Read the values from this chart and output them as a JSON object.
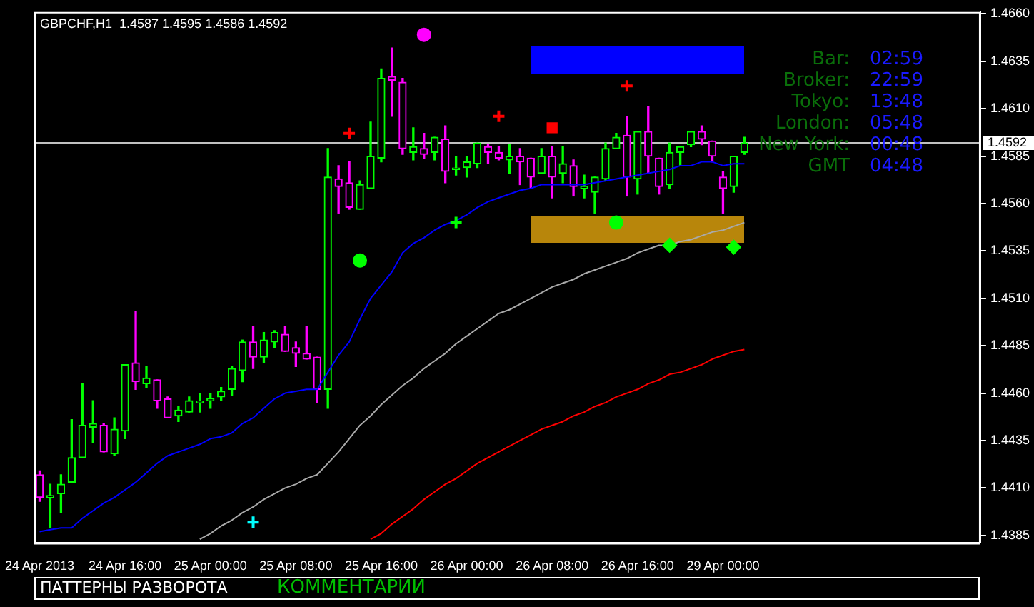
{
  "chart_data": {
    "type": "candlestick",
    "title": "GBPCHF,H1  1.4587 1.4595 1.4586 1.4592",
    "categories": [
      "24 Apr 2013",
      null,
      null,
      null,
      null,
      null,
      null,
      null,
      "24 Apr 16:00",
      null,
      null,
      null,
      null,
      null,
      null,
      null,
      "25 Apr 00:00",
      null,
      null,
      null,
      null,
      null,
      null,
      null,
      "25 Apr 08:00",
      null,
      null,
      null,
      null,
      null,
      null,
      null,
      "25 Apr 16:00",
      null,
      null,
      null,
      null,
      null,
      null,
      null,
      "26 Apr 00:00",
      null,
      null,
      null,
      null,
      null,
      null,
      null,
      "26 Apr 08:00",
      null,
      null,
      null,
      null,
      null,
      null,
      null,
      "26 Apr 16:00",
      null,
      null,
      null,
      null,
      null,
      null,
      null,
      "29 Apr 00:00",
      null,
      null
    ],
    "ohlc": [
      [
        1.4417,
        1.4419,
        1.4403,
        1.4405
      ],
      [
        1.4405,
        1.4412,
        1.4389,
        1.4406
      ],
      [
        1.4407,
        1.4417,
        1.4397,
        1.4412
      ],
      [
        1.4413,
        1.4446,
        1.4413,
        1.4426
      ],
      [
        1.4426,
        1.4465,
        1.4426,
        1.4443
      ],
      [
        1.4442,
        1.4456,
        1.4434,
        1.4444
      ],
      [
        1.4443,
        1.4444,
        1.4429,
        1.4429
      ],
      [
        1.4428,
        1.4447,
        1.4427,
        1.4441
      ],
      [
        1.444,
        1.4475,
        1.4436,
        1.4475
      ],
      [
        1.4476,
        1.4503,
        1.4462,
        1.4466
      ],
      [
        1.4465,
        1.4474,
        1.4463,
        1.4468
      ],
      [
        1.4467,
        1.4467,
        1.4452,
        1.4456
      ],
      [
        1.4457,
        1.4458,
        1.4447,
        1.4447
      ],
      [
        1.4448,
        1.4453,
        1.4445,
        1.4451
      ],
      [
        1.445,
        1.4458,
        1.445,
        1.4456
      ],
      [
        1.4455,
        1.446,
        1.445,
        1.4455
      ],
      [
        1.4456,
        1.446,
        1.4452,
        1.4457
      ],
      [
        1.4458,
        1.4463,
        1.4456,
        1.4461
      ],
      [
        1.4462,
        1.4474,
        1.4459,
        1.4473
      ],
      [
        1.4472,
        1.4488,
        1.4466,
        1.4487
      ],
      [
        1.4487,
        1.4495,
        1.4473,
        1.4479
      ],
      [
        1.4479,
        1.4492,
        1.4476,
        1.4488
      ],
      [
        1.4487,
        1.4493,
        1.4484,
        1.4492
      ],
      [
        1.4491,
        1.4495,
        1.4482,
        1.4482
      ],
      [
        1.4484,
        1.4487,
        1.4474,
        1.4481
      ],
      [
        1.4481,
        1.4495,
        1.4478,
        1.4478
      ],
      [
        1.4479,
        1.4479,
        1.4455,
        1.4462
      ],
      [
        1.4462,
        1.4589,
        1.4452,
        1.4574
      ],
      [
        1.4573,
        1.458,
        1.4555,
        1.4569
      ],
      [
        1.4571,
        1.4582,
        1.4557,
        1.4558
      ],
      [
        1.4557,
        1.4572,
        1.4557,
        1.457
      ],
      [
        1.4568,
        1.4603,
        1.4568,
        1.4585
      ],
      [
        1.4584,
        1.4631,
        1.4582,
        1.4626
      ],
      [
        1.4627,
        1.4642,
        1.4606,
        1.4625
      ],
      [
        1.4624,
        1.4626,
        1.4586,
        1.4589
      ],
      [
        1.4587,
        1.46,
        1.4583,
        1.459
      ],
      [
        1.4589,
        1.4597,
        1.4584,
        1.4586
      ],
      [
        1.4587,
        1.4595,
        1.4583,
        1.4595
      ],
      [
        1.4594,
        1.4601,
        1.4571,
        1.4577
      ],
      [
        1.4578,
        1.4585,
        1.4575,
        1.4578
      ],
      [
        1.4579,
        1.4585,
        1.4574,
        1.4582
      ],
      [
        1.4581,
        1.4592,
        1.4579,
        1.4592
      ],
      [
        1.459,
        1.4591,
        1.4581,
        1.4587
      ],
      [
        1.4587,
        1.459,
        1.4583,
        1.4584
      ],
      [
        1.4583,
        1.4591,
        1.4576,
        1.4585
      ],
      [
        1.4585,
        1.4589,
        1.457,
        1.4582
      ],
      [
        1.4584,
        1.4584,
        1.4568,
        1.4574
      ],
      [
        1.4576,
        1.4589,
        1.4576,
        1.4585
      ],
      [
        1.4585,
        1.459,
        1.4563,
        1.4574
      ],
      [
        1.4576,
        1.459,
        1.4571,
        1.4581
      ],
      [
        1.458,
        1.4583,
        1.4564,
        1.4569
      ],
      [
        1.4568,
        1.4575,
        1.4563,
        1.4569
      ],
      [
        1.4566,
        1.4574,
        1.4555,
        1.4574
      ],
      [
        1.4573,
        1.4592,
        1.4572,
        1.4589
      ],
      [
        1.4589,
        1.4597,
        1.4589,
        1.4595
      ],
      [
        1.4596,
        1.4606,
        1.4564,
        1.4574
      ],
      [
        1.4573,
        1.4598,
        1.4565,
        1.4598
      ],
      [
        1.4598,
        1.4611,
        1.4576,
        1.4585
      ],
      [
        1.4584,
        1.4584,
        1.4565,
        1.4569
      ],
      [
        1.457,
        1.4592,
        1.4568,
        1.4587
      ],
      [
        1.4587,
        1.459,
        1.458,
        1.459
      ],
      [
        1.4591,
        1.4598,
        1.459,
        1.4598
      ],
      [
        1.4598,
        1.4601,
        1.4591,
        1.4594
      ],
      [
        1.4593,
        1.4593,
        1.4582,
        1.4585
      ],
      [
        1.4574,
        1.4577,
        1.4555,
        1.4568
      ],
      [
        1.4569,
        1.4585,
        1.4566,
        1.4585
      ],
      [
        1.4587,
        1.4595,
        1.4586,
        1.4592
      ]
    ],
    "colors": [
      "#ff00ff",
      "#00ff00",
      "#00ff00",
      "#00ff00",
      "#00ff00",
      "#00ff00",
      "#ff00ff",
      "#00ff00",
      "#00ff00",
      "#ff00ff",
      "#00ff00",
      "#ff00ff",
      "#ff00ff",
      "#00ff00",
      "#00ff00",
      "#00ff00",
      "#00ff00",
      "#00ff00",
      "#00ff00",
      "#00ff00",
      "#ff00ff",
      "#00ff00",
      "#00ff00",
      "#ff00ff",
      "#ff00ff",
      "#ff00ff",
      "#ff00ff",
      "#00ff00",
      "#ff00ff",
      "#ff00ff",
      "#00ff00",
      "#00ff00",
      "#00ff00",
      "#ff00ff",
      "#ff00ff",
      "#00ff00",
      "#ff00ff",
      "#00ff00",
      "#ff00ff",
      "#00ff00",
      "#00ff00",
      "#00ff00",
      "#ff00ff",
      "#ff00ff",
      "#00ff00",
      "#ff00ff",
      "#ff00ff",
      "#00ff00",
      "#ff00ff",
      "#00ff00",
      "#ff00ff",
      "#00ff00",
      "#00ff00",
      "#00ff00",
      "#00ff00",
      "#ff00ff",
      "#00ff00",
      "#ff00ff",
      "#ff00ff",
      "#00ff00",
      "#00ff00",
      "#00ff00",
      "#ff00ff",
      "#ff00ff",
      "#ff00ff",
      "#00ff00",
      "#00ff00"
    ],
    "series": [
      {
        "type": "line",
        "color": "#0000ff",
        "values": [
          1.4387,
          1.4388,
          1.4389,
          1.4389,
          1.4394,
          1.4398,
          1.4402,
          1.4405,
          1.4409,
          1.4413,
          1.4418,
          1.4423,
          1.4427,
          1.4429,
          1.4431,
          1.4433,
          1.4436,
          1.4437,
          1.4439,
          1.4444,
          1.4447,
          1.4452,
          1.4457,
          1.446,
          1.4461,
          1.4462,
          1.4462,
          1.4471,
          1.448,
          1.4487,
          1.4499,
          1.451,
          1.4517,
          1.4524,
          1.4534,
          1.4539,
          1.4542,
          1.4546,
          1.4549,
          1.4551,
          1.4554,
          1.4558,
          1.4561,
          1.4563,
          1.4565,
          1.4567,
          1.4568,
          1.457,
          1.457,
          1.457,
          1.457,
          1.457,
          1.4571,
          1.4572,
          1.4573,
          1.4574,
          1.4575,
          1.4576,
          1.4577,
          1.4578,
          1.458,
          1.458,
          1.4582,
          1.4582,
          1.458,
          1.4581,
          1.4581
        ]
      },
      {
        "type": "line",
        "color": "#a9a9a9",
        "values": [
          null,
          null,
          null,
          null,
          null,
          null,
          null,
          null,
          null,
          null,
          null,
          null,
          null,
          null,
          null,
          1.4383,
          1.4386,
          1.439,
          1.4393,
          1.4397,
          1.44,
          1.4404,
          1.4407,
          1.441,
          1.4412,
          1.4415,
          1.4417,
          1.4423,
          1.4429,
          1.4436,
          1.4443,
          1.4448,
          1.4454,
          1.4459,
          1.4464,
          1.4468,
          1.4473,
          1.4477,
          1.4481,
          1.4486,
          1.449,
          1.4494,
          1.4498,
          1.4502,
          1.4504,
          1.4507,
          1.451,
          1.4513,
          1.4516,
          1.4518,
          1.452,
          1.4523,
          1.4525,
          1.4527,
          1.4529,
          1.4531,
          1.4534,
          1.4536,
          1.4538,
          1.4538,
          1.454,
          1.4541,
          1.4543,
          1.4545,
          1.4546,
          1.4548,
          1.455
        ]
      },
      {
        "type": "line",
        "color": "#ff0000",
        "values": [
          null,
          null,
          null,
          null,
          null,
          null,
          null,
          null,
          null,
          null,
          null,
          null,
          null,
          null,
          null,
          null,
          null,
          null,
          null,
          null,
          null,
          null,
          null,
          null,
          null,
          null,
          null,
          null,
          null,
          null,
          null,
          1.4383,
          1.4386,
          1.4391,
          1.4395,
          1.4399,
          1.4404,
          1.4408,
          1.4412,
          1.4415,
          1.4419,
          1.4423,
          1.4426,
          1.4429,
          1.4432,
          1.4435,
          1.4438,
          1.4441,
          1.4443,
          1.4445,
          1.4448,
          1.445,
          1.4453,
          1.4455,
          1.4458,
          1.446,
          1.4462,
          1.4465,
          1.4467,
          1.447,
          1.4471,
          1.4473,
          1.4475,
          1.4478,
          1.448,
          1.4482,
          1.4483
        ]
      },
      {
        "type": "scatter",
        "color": "#00ff00",
        "marker": "circle",
        "values": [
          null,
          null,
          null,
          null,
          null,
          null,
          null,
          null,
          null,
          null,
          null,
          null,
          null,
          null,
          null,
          null,
          null,
          null,
          null,
          null,
          null,
          null,
          null,
          null,
          null,
          null,
          null,
          null,
          null,
          null,
          1.453,
          null,
          null,
          null,
          null,
          null,
          null,
          null,
          null,
          null,
          null,
          null,
          null,
          null,
          null,
          null,
          null,
          null,
          null,
          null,
          null,
          null,
          null,
          null,
          1.455,
          null,
          null,
          null,
          null,
          null,
          null,
          null,
          null,
          null,
          null,
          null,
          null
        ]
      },
      {
        "type": "scatter",
        "color": "#00ff00",
        "marker": "cross",
        "values": [
          null,
          null,
          null,
          null,
          null,
          null,
          null,
          null,
          null,
          null,
          null,
          null,
          null,
          null,
          null,
          null,
          null,
          null,
          null,
          null,
          null,
          null,
          null,
          null,
          null,
          null,
          null,
          null,
          null,
          null,
          null,
          null,
          null,
          null,
          null,
          null,
          null,
          null,
          null,
          1.455,
          null,
          null,
          null,
          null,
          null,
          null,
          null,
          null,
          null,
          null,
          null,
          null,
          null,
          null,
          null,
          null,
          null,
          null,
          null,
          null,
          null,
          null,
          null,
          null,
          null,
          null,
          null
        ]
      },
      {
        "type": "scatter",
        "color": "#00ff00",
        "marker": "diamond",
        "values": [
          null,
          null,
          null,
          null,
          null,
          null,
          null,
          null,
          null,
          null,
          null,
          null,
          null,
          null,
          null,
          null,
          null,
          null,
          null,
          null,
          null,
          null,
          null,
          null,
          null,
          null,
          null,
          null,
          null,
          null,
          null,
          null,
          null,
          null,
          null,
          null,
          null,
          null,
          null,
          null,
          null,
          null,
          null,
          null,
          null,
          null,
          null,
          null,
          null,
          null,
          null,
          null,
          null,
          null,
          null,
          null,
          null,
          null,
          null,
          1.4538,
          null,
          null,
          null,
          null,
          null,
          1.4537,
          null
        ]
      },
      {
        "type": "scatter",
        "color": "#ff0000",
        "marker": "cross",
        "values": [
          null,
          null,
          null,
          null,
          null,
          null,
          null,
          null,
          null,
          null,
          null,
          null,
          null,
          null,
          null,
          null,
          null,
          null,
          null,
          null,
          null,
          null,
          null,
          null,
          null,
          null,
          null,
          null,
          null,
          1.4597,
          null,
          null,
          null,
          null,
          null,
          null,
          null,
          null,
          null,
          null,
          null,
          null,
          null,
          1.4606,
          null,
          null,
          null,
          null,
          null,
          null,
          null,
          null,
          null,
          null,
          null,
          null,
          null,
          null,
          null,
          null,
          null,
          null,
          null,
          null,
          null,
          null,
          null
        ]
      },
      {
        "type": "scatter",
        "color": "#ff0000",
        "marker": "square",
        "values": [
          null,
          null,
          null,
          null,
          null,
          null,
          null,
          null,
          null,
          null,
          null,
          null,
          null,
          null,
          null,
          null,
          null,
          null,
          null,
          null,
          null,
          null,
          null,
          null,
          null,
          null,
          null,
          null,
          null,
          null,
          null,
          null,
          null,
          null,
          null,
          null,
          null,
          null,
          null,
          null,
          null,
          null,
          null,
          null,
          null,
          null,
          null,
          null,
          1.46,
          null,
          null,
          null,
          null,
          null,
          null,
          null,
          null,
          null,
          null,
          null,
          null,
          null,
          null,
          null,
          null,
          null,
          null
        ]
      },
      {
        "type": "scatter",
        "color": "#ff0000",
        "marker": "cross",
        "values": [
          null,
          null,
          null,
          null,
          null,
          null,
          null,
          null,
          null,
          null,
          null,
          null,
          null,
          null,
          null,
          null,
          null,
          null,
          null,
          null,
          null,
          null,
          null,
          null,
          null,
          null,
          null,
          null,
          null,
          null,
          null,
          null,
          null,
          null,
          null,
          null,
          null,
          null,
          null,
          null,
          null,
          null,
          null,
          null,
          null,
          null,
          null,
          null,
          null,
          null,
          null,
          null,
          null,
          null,
          null,
          1.4622,
          null,
          null,
          null,
          null,
          null,
          null,
          null,
          null,
          null,
          null,
          null
        ]
      },
      {
        "type": "scatter",
        "color": "#ff00ff",
        "marker": "circle",
        "values": [
          null,
          null,
          null,
          null,
          null,
          null,
          null,
          null,
          null,
          null,
          null,
          null,
          null,
          null,
          null,
          null,
          null,
          null,
          null,
          null,
          null,
          null,
          null,
          null,
          null,
          null,
          null,
          null,
          null,
          null,
          null,
          null,
          null,
          null,
          null,
          null,
          1.4649,
          null,
          null,
          null,
          null,
          null,
          null,
          null,
          null,
          null,
          null,
          null,
          null,
          null,
          null,
          null,
          null,
          null,
          null,
          null,
          null,
          null,
          null,
          null,
          null,
          null,
          null,
          null,
          null,
          null,
          null
        ]
      },
      {
        "type": "scatter",
        "color": "#00ffff",
        "marker": "cross",
        "values": [
          null,
          null,
          null,
          null,
          null,
          null,
          null,
          null,
          null,
          null,
          null,
          null,
          null,
          null,
          null,
          null,
          null,
          null,
          null,
          null,
          1.4392,
          null,
          null,
          null,
          null,
          null,
          null,
          null,
          null,
          null,
          null,
          null,
          null,
          null,
          null,
          null,
          null,
          null,
          null,
          null,
          null,
          null,
          null,
          null,
          null,
          null,
          null,
          null,
          null,
          null,
          null,
          null,
          null,
          null,
          null,
          null,
          null,
          null,
          null,
          null,
          null,
          null,
          null,
          null,
          null,
          null,
          null
        ]
      }
    ],
    "ylim": [
      1.4381,
      1.4661
    ],
    "yticks": [
      1.4385,
      {
        "value": 1.441,
        "label": "1.4410"
      },
      1.4435,
      {
        "value": 1.446,
        "label": "1.4460"
      },
      1.4485,
      {
        "value": 1.451,
        "label": "1.4510"
      },
      1.4535,
      {
        "value": 1.456,
        "label": "1.4560"
      },
      1.4585,
      {
        "value": 1.461,
        "label": "1.4610"
      },
      1.4635,
      {
        "value": 1.466,
        "label": "1.4660"
      }
    ],
    "ref_lines": [
      {
        "axis": "y",
        "value": 1.4592,
        "label": "1.4592",
        "color": "#c0c0c0"
      }
    ],
    "annotations": [
      "Bar:",
      "02:59",
      "Broker:",
      "22:59",
      "Tokyo:",
      "13:48",
      "London:",
      "05:48",
      "New York:",
      "00:48",
      "GMT",
      "04:48",
      "ПАТТЕРНЫ РАЗВОРОТА",
      "КОММЕНТАРИИ"
    ]
  }
}
